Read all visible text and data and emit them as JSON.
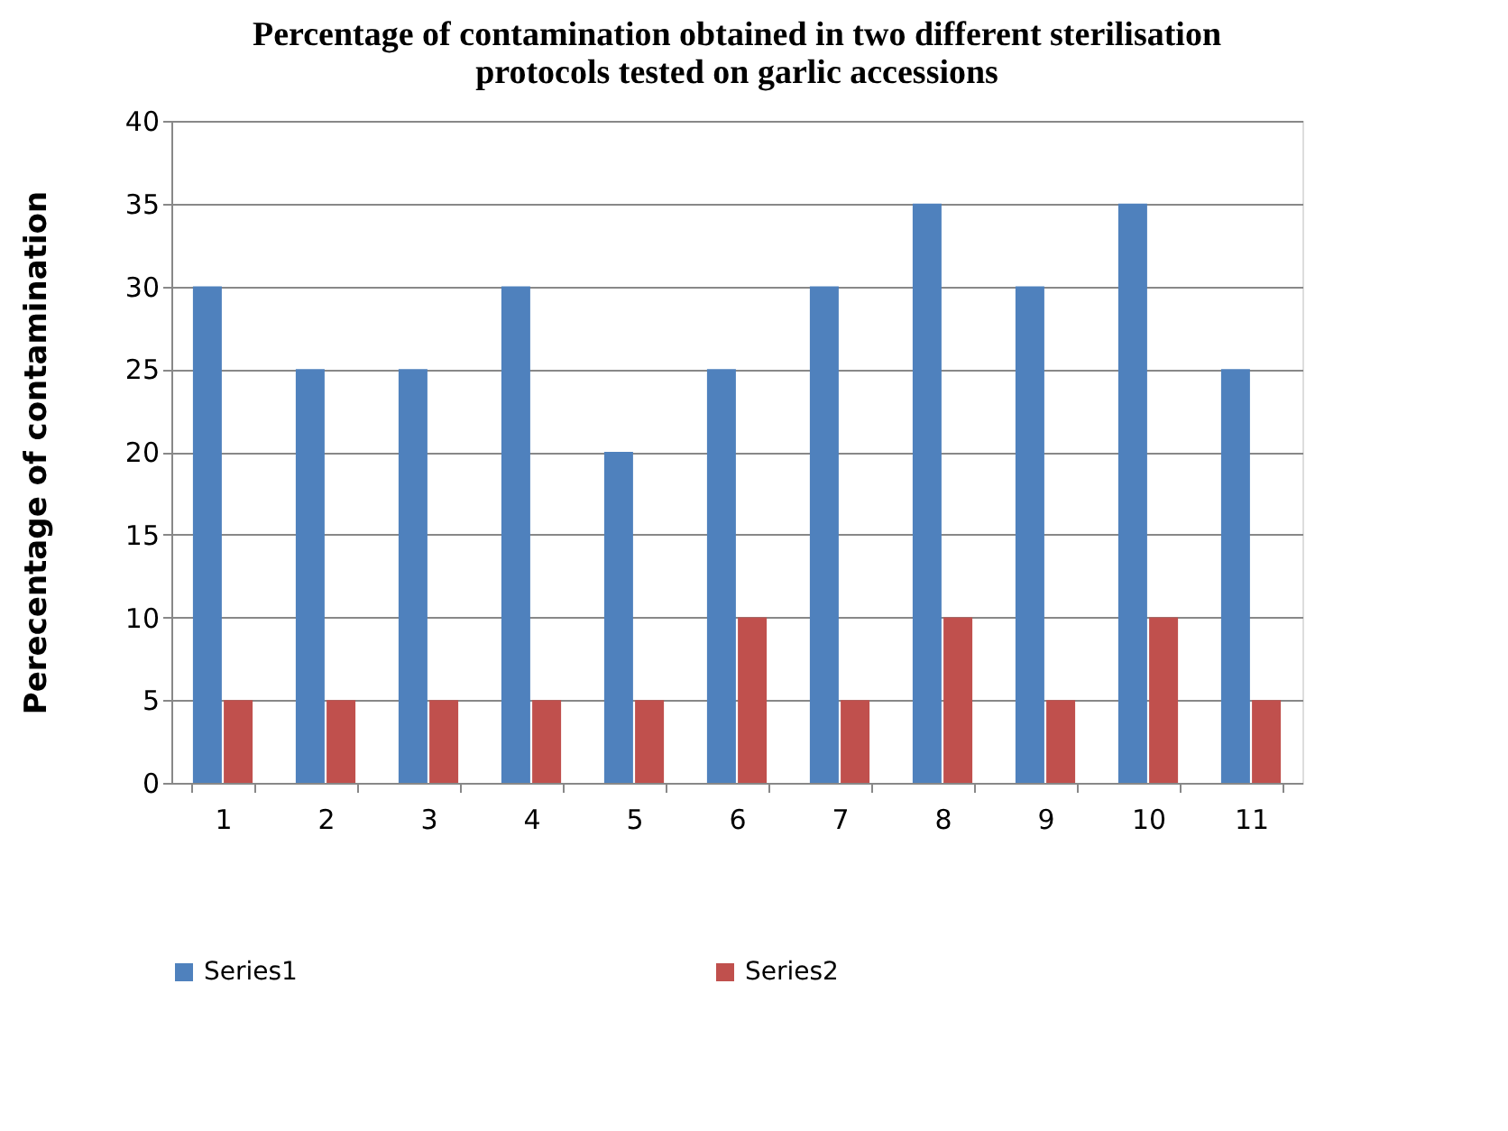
{
  "chart_data": {
    "type": "bar",
    "title": "Percentage of contamination obtained in two different sterilisation protocols tested on garlic accessions",
    "ylabel": "Perecentage of contamination",
    "categories": [
      "1",
      "2",
      "3",
      "4",
      "5",
      "6",
      "7",
      "8",
      "9",
      "10",
      "11"
    ],
    "series": [
      {
        "name": "Series1",
        "color": "#4f81bd",
        "values": [
          30,
          25,
          25,
          30,
          20,
          25,
          30,
          35,
          30,
          35,
          25
        ]
      },
      {
        "name": "Series2",
        "color": "#c0504d",
        "values": [
          5,
          5,
          5,
          5,
          5,
          10,
          5,
          10,
          5,
          10,
          5
        ]
      }
    ],
    "ylim": [
      0,
      40
    ],
    "yticks": [
      0,
      5,
      10,
      15,
      20,
      25,
      30,
      35,
      40
    ],
    "grid": "y",
    "legend": "bottom"
  }
}
